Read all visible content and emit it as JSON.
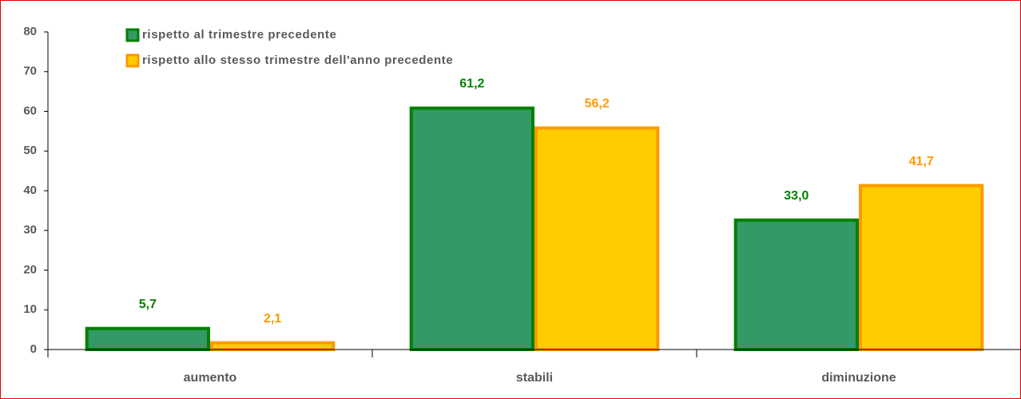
{
  "chart_data": {
    "type": "bar",
    "categories": [
      "aumento",
      "stabili",
      "diminuzione"
    ],
    "series": [
      {
        "name": "rispetto al trimestre precedente",
        "color": "#339966",
        "stroke": "#008000",
        "label_color": "#008000",
        "values": [
          5.7,
          61.2,
          33.0
        ],
        "value_labels": [
          "5,7",
          "61,2",
          "33,0"
        ]
      },
      {
        "name": "rispetto allo stesso trimestre dell'anno precedente",
        "color": "#ffcc00",
        "stroke": "#ff9900",
        "label_color": "#ff9900",
        "values": [
          2.1,
          56.2,
          41.7
        ],
        "value_labels": [
          "2,1",
          "56,2",
          "41,7"
        ]
      }
    ],
    "ylim": [
      0,
      80
    ],
    "yticks": [
      0,
      10,
      20,
      30,
      40,
      50,
      60,
      70,
      80
    ]
  }
}
